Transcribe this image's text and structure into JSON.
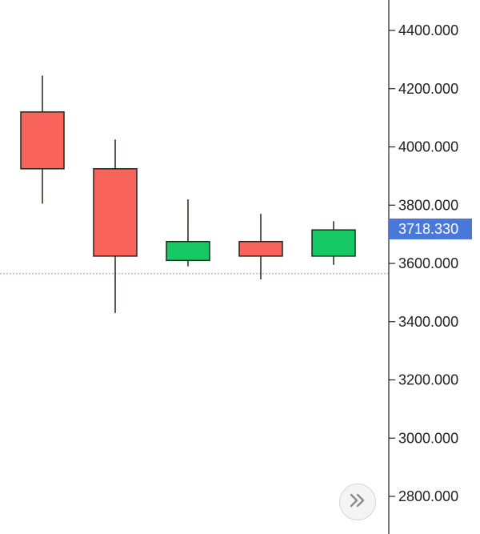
{
  "chart_data": {
    "type": "candlestick",
    "y_axis": {
      "position": "right",
      "ylim": [
        2700,
        4500
      ],
      "ticks": [
        2800,
        3000,
        3200,
        3400,
        3600,
        3800,
        4000,
        4200,
        4400
      ],
      "tick_labels": [
        "2800.000",
        "3000.000",
        "3200.000",
        "3400.000",
        "3600.000",
        "3800.000",
        "4000.000",
        "4200.000",
        "4400.000"
      ]
    },
    "candles": [
      {
        "open": 4120,
        "high": 4245,
        "low": 3805,
        "close": 3925
      },
      {
        "open": 3925,
        "high": 4025,
        "low": 3430,
        "close": 3625
      },
      {
        "open": 3610,
        "high": 3820,
        "low": 3590,
        "close": 3675
      },
      {
        "open": 3675,
        "high": 3770,
        "low": 3545,
        "close": 3625
      },
      {
        "open": 3625,
        "high": 3745,
        "low": 3595,
        "close": 3715
      }
    ],
    "last_price": {
      "value": 3718.33,
      "label": "3718.330"
    },
    "horizontal_line": {
      "value": 3565
    },
    "colors": {
      "up": "#17c964",
      "down": "#f8635b",
      "wick": "#1c2b1c",
      "price_label_bg": "#4a78d9",
      "price_line": "#8a9ee0",
      "axis": "#222222"
    }
  },
  "controls": {
    "scroll_to_latest_icon": "double-chevron-right-icon"
  }
}
